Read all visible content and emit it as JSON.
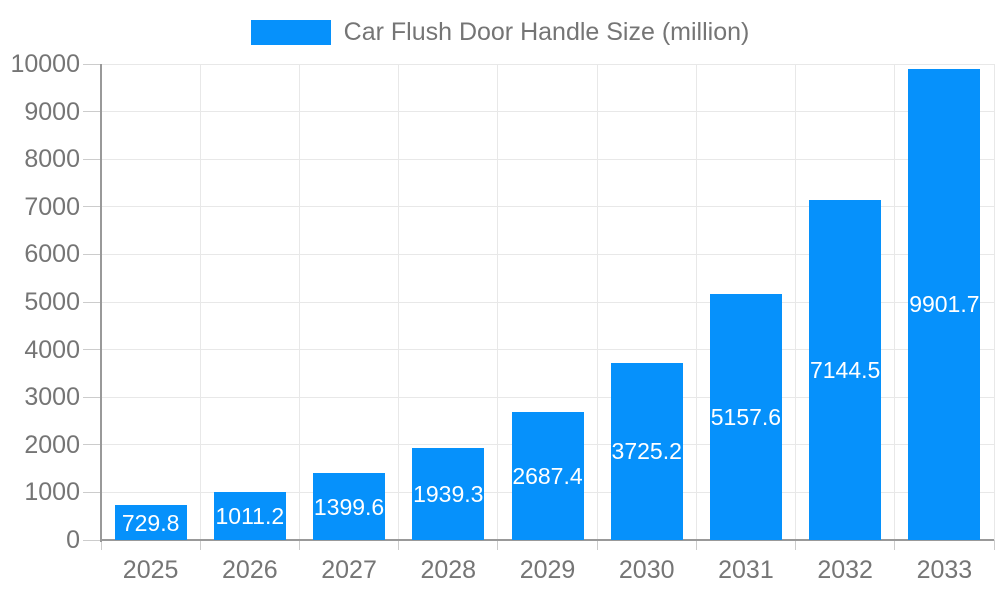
{
  "legend": {
    "label": "Car Flush Door Handle Size (million)"
  },
  "chart_data": {
    "type": "bar",
    "title": "Car Flush Door Handle Size (million)",
    "series_name": "Car Flush Door Handle Size (million)",
    "categories": [
      "2025",
      "2026",
      "2027",
      "2028",
      "2029",
      "2030",
      "2031",
      "2032",
      "2033"
    ],
    "values": [
      729.8,
      1011.2,
      1399.6,
      1939.3,
      2687.4,
      3725.2,
      5157.6,
      7144.5,
      9901.7
    ],
    "value_labels": [
      "729.8",
      "1011.2",
      "1399.6",
      "1939.3",
      "2687.4",
      "3725.2",
      "5157.6",
      "7144.5",
      "9901.7"
    ],
    "xlabel": "",
    "ylabel": "",
    "ylim": [
      0,
      10000
    ],
    "yticks": [
      0,
      1000,
      2000,
      3000,
      4000,
      5000,
      6000,
      7000,
      8000,
      9000,
      10000
    ],
    "grid": true,
    "legend_position": "top-center",
    "value_label_position": "inside-center",
    "colors": {
      "bar": "#0691fb",
      "grid": "#e8e8e8",
      "axis": "#999999",
      "tick": "#cccccc",
      "axis_label": "#757575",
      "value_label": "#ffffff",
      "background": "#ffffff"
    }
  }
}
